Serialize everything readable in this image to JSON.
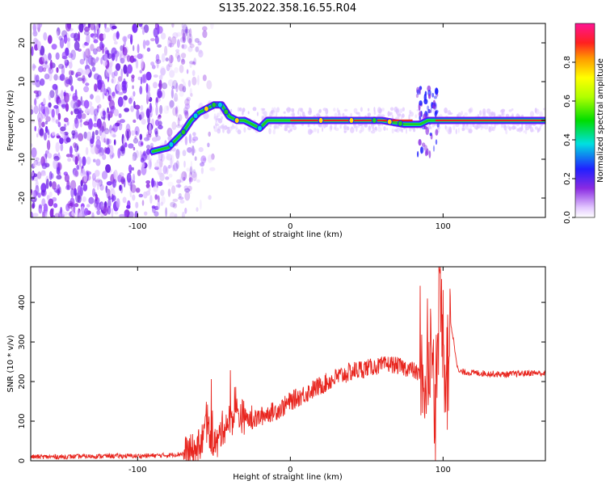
{
  "title": "S135.2022.358.16.55.R04",
  "colors": {
    "snr_line": "#e8251e",
    "spectrum_low": "#8a2be2",
    "axis": "#000000"
  },
  "chart_data": [
    {
      "type": "heatmap",
      "xlabel": "Height of straight line (km)",
      "ylabel": "Frequency (Hz)",
      "xlim": [
        -170,
        167
      ],
      "ylim": [
        -25,
        25
      ],
      "xticks": [
        -100,
        0,
        100
      ],
      "yticks": [
        -20,
        -10,
        0,
        10,
        20
      ],
      "colorbar": {
        "label": "Normalized spectral amplitude",
        "range": [
          0,
          1
        ],
        "ticks": [
          "0.0",
          "0.2",
          "0.4",
          "0.6",
          "0.8"
        ],
        "colormap": "rainbow"
      },
      "ridge": {
        "x": [
          -90,
          -80,
          -70,
          -65,
          -60,
          -55,
          -50,
          -45,
          -40,
          -35,
          -30,
          -25,
          -20,
          -15,
          -10,
          0,
          20,
          40,
          60,
          75,
          80,
          85,
          90,
          95,
          100,
          167
        ],
        "frequency": [
          -8,
          -7,
          -3,
          0,
          2,
          3,
          4,
          4,
          1,
          0,
          0,
          -1,
          -2,
          0,
          0,
          0,
          0,
          0,
          0,
          -1,
          -1,
          -1,
          0,
          0,
          0,
          0
        ]
      }
    },
    {
      "type": "line",
      "xlabel": "Height of straight line (km)",
      "ylabel": "SNR (10 * v/v)",
      "xlim": [
        -170,
        167
      ],
      "ylim": [
        0,
        490
      ],
      "xticks": [
        -100,
        0,
        100
      ],
      "yticks": [
        0,
        100,
        200,
        300,
        400
      ],
      "series": [
        {
          "x": [
            -170,
            -150,
            -120,
            -100,
            -80,
            -70,
            -62,
            -58,
            -55,
            -52,
            -48,
            -45,
            -40,
            -35,
            -30,
            -25,
            -20,
            -15,
            -10,
            -5,
            0,
            10,
            20,
            30,
            40,
            50,
            60,
            65,
            70,
            75,
            80,
            85,
            88,
            90,
            92,
            95,
            97,
            99,
            101,
            103,
            105,
            110,
            120,
            130,
            140,
            150,
            160,
            167
          ],
          "values": [
            10,
            10,
            12,
            12,
            14,
            18,
            25,
            50,
            90,
            60,
            40,
            80,
            100,
            120,
            110,
            100,
            110,
            120,
            125,
            135,
            150,
            170,
            190,
            210,
            225,
            235,
            240,
            245,
            240,
            235,
            230,
            215,
            200,
            250,
            280,
            150,
            350,
            400,
            250,
            200,
            350,
            225,
            222,
            220,
            218,
            220,
            222,
            220
          ]
        }
      ]
    }
  ]
}
